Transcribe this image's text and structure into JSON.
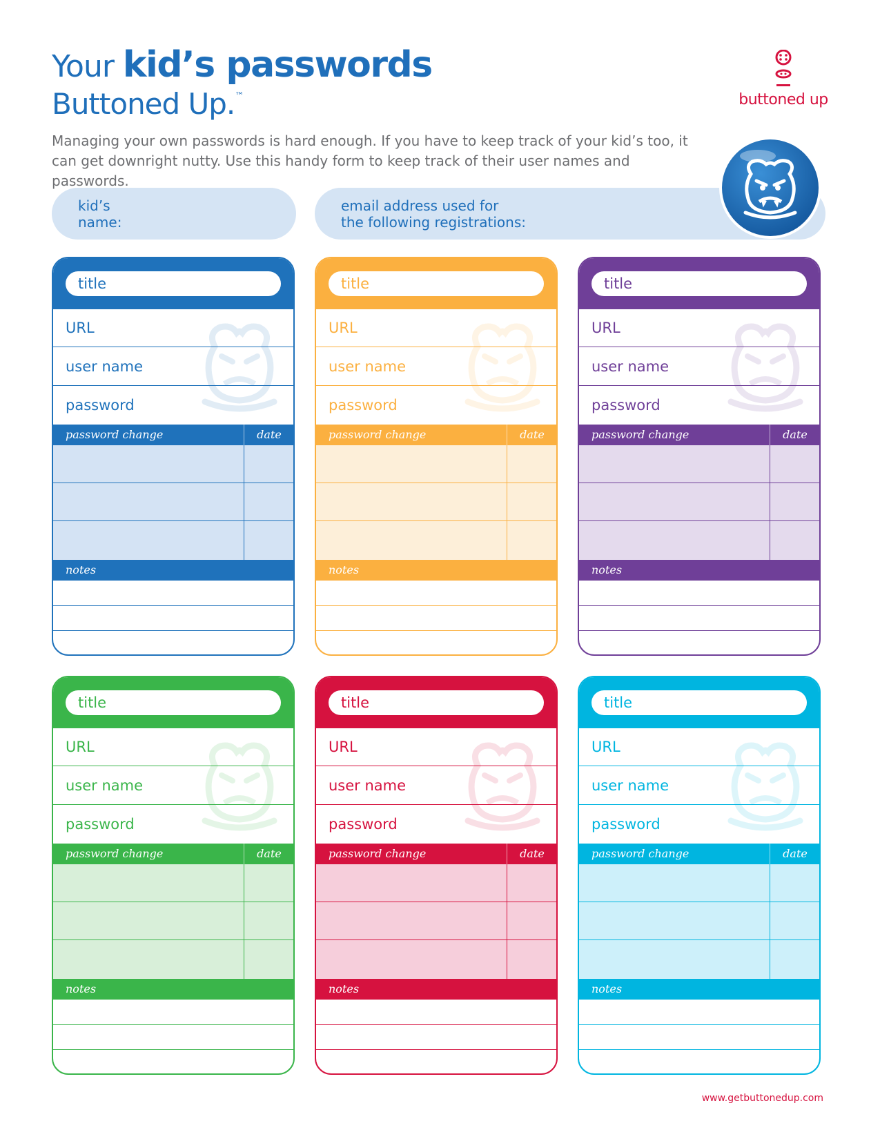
{
  "header": {
    "title_prefix": "Your ",
    "title_bold": "kid’s passwords",
    "subtitle": "Buttoned Up.",
    "trademark": "™",
    "intro": "Managing your own passwords is hard enough. If you have to keep track of your kid’s too, it can get downright nutty. Use this handy form to keep track of their user names and passwords."
  },
  "logo": {
    "text": "buttoned up",
    "brand_color": "#d6123f"
  },
  "fields": {
    "kid_name_label": "kid’s\nname:",
    "email_label": "email address used for\nthe following registrations:"
  },
  "card_labels": {
    "title": "title",
    "url": "URL",
    "username": "user name",
    "password": "password",
    "password_change": "password change",
    "date": "date",
    "notes": "notes"
  },
  "cards": [
    {
      "color": "#1f72bb",
      "light": "#d4e3f4"
    },
    {
      "color": "#fbb040",
      "light": "#fdefd9"
    },
    {
      "color": "#6f3f98",
      "light": "#e4daed"
    },
    {
      "color": "#3ab54a",
      "light": "#d8efd9"
    },
    {
      "color": "#d6123f",
      "light": "#f6cedb"
    },
    {
      "color": "#00b5e0",
      "light": "#cdf0fa"
    }
  ],
  "footer": {
    "url": "www.getbuttonedup.com"
  }
}
